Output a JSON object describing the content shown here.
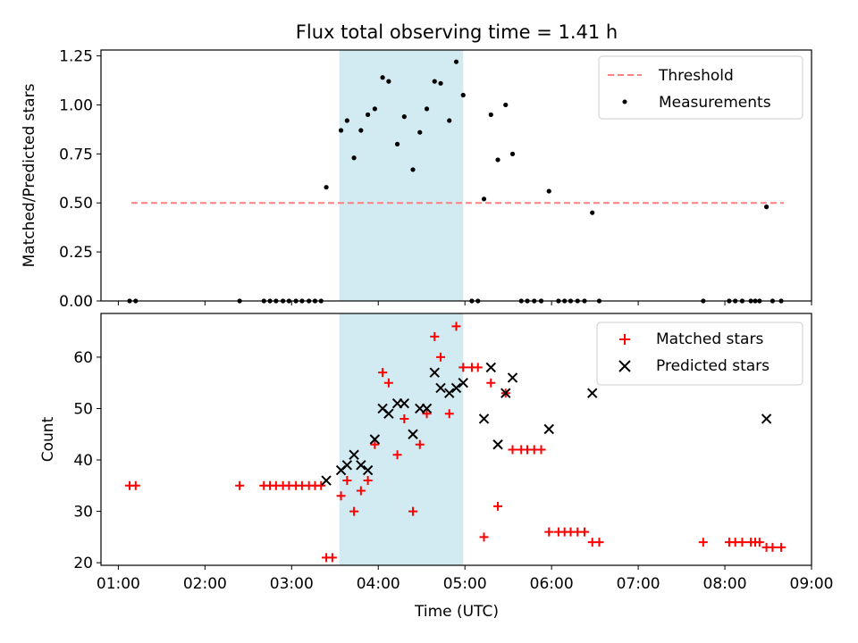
{
  "title": "Flux total observing time = 1.41 h",
  "colors": {
    "shade": "#add8e6",
    "threshold": "#ff8080",
    "measurement": "#000000",
    "matched": "#ff0000",
    "predicted": "#000000"
  },
  "chart_data": [
    {
      "type": "scatter",
      "ylabel": "Matched/Predicted stars",
      "xlabel": "",
      "xlim": [
        0.8,
        9.0
      ],
      "ylim": [
        0,
        1.28
      ],
      "yticks": [
        "0.00",
        "0.25",
        "0.50",
        "0.75",
        "1.00",
        "1.25"
      ],
      "ytick_values": [
        0,
        0.25,
        0.5,
        0.75,
        1.0,
        1.25
      ],
      "shaded_interval": [
        3.55,
        4.98
      ],
      "legend_position": "upper right",
      "series": [
        {
          "name": "Threshold",
          "kind": "dashed-line",
          "x": [
            1.15,
            8.68
          ],
          "y": [
            0.5,
            0.5
          ]
        },
        {
          "name": "Measurements",
          "kind": "dots",
          "x": [
            1.13,
            1.2,
            2.4,
            2.68,
            2.75,
            2.82,
            2.9,
            2.97,
            3.05,
            3.12,
            3.2,
            3.27,
            3.34,
            3.4,
            3.57,
            3.64,
            3.72,
            3.8,
            3.88,
            3.96,
            4.05,
            4.12,
            4.22,
            4.3,
            4.4,
            4.48,
            4.56,
            4.65,
            4.72,
            4.82,
            4.9,
            4.98,
            5.08,
            5.15,
            5.22,
            5.3,
            5.38,
            5.47,
            5.55,
            5.65,
            5.72,
            5.8,
            5.88,
            5.97,
            6.08,
            6.15,
            6.22,
            6.3,
            6.38,
            6.47,
            6.55,
            7.75,
            8.05,
            8.12,
            8.2,
            8.3,
            8.35,
            8.4,
            8.48,
            8.55,
            8.65
          ],
          "y": [
            0,
            0,
            0,
            0,
            0,
            0,
            0,
            0,
            0,
            0,
            0,
            0,
            0,
            0.58,
            0.87,
            0.92,
            0.73,
            0.87,
            0.95,
            0.98,
            1.14,
            1.12,
            0.8,
            0.94,
            0.67,
            0.86,
            0.98,
            1.12,
            1.11,
            0.92,
            1.22,
            1.05,
            0,
            0,
            0.52,
            0.95,
            0.72,
            1.0,
            0.75,
            0,
            0,
            0,
            0,
            0.56,
            0,
            0,
            0,
            0,
            0,
            0.45,
            0,
            0,
            0,
            0,
            0,
            0,
            0,
            0,
            0.48,
            0,
            0
          ]
        }
      ]
    },
    {
      "type": "scatter",
      "ylabel": "Count",
      "xlabel": "Time (UTC)",
      "xlim": [
        0.8,
        9.0
      ],
      "ylim": [
        19.5,
        68.5
      ],
      "yticks": [
        "20",
        "30",
        "40",
        "50",
        "60"
      ],
      "ytick_values": [
        20,
        30,
        40,
        50,
        60
      ],
      "xticks": [
        "01:00",
        "02:00",
        "03:00",
        "04:00",
        "05:00",
        "06:00",
        "07:00",
        "08:00",
        "09:00"
      ],
      "xtick_values": [
        1,
        2,
        3,
        4,
        5,
        6,
        7,
        8,
        9
      ],
      "shaded_interval": [
        3.55,
        4.98
      ],
      "legend_position": "upper right",
      "series": [
        {
          "name": "Matched stars",
          "kind": "plus",
          "x": [
            1.13,
            1.2,
            2.4,
            2.68,
            2.75,
            2.82,
            2.9,
            2.97,
            3.05,
            3.12,
            3.2,
            3.27,
            3.34,
            3.4,
            3.47,
            3.57,
            3.64,
            3.72,
            3.8,
            3.88,
            3.96,
            4.05,
            4.12,
            4.22,
            4.3,
            4.4,
            4.48,
            4.56,
            4.65,
            4.72,
            4.82,
            4.9,
            4.98,
            5.08,
            5.15,
            5.22,
            5.3,
            5.38,
            5.47,
            5.55,
            5.65,
            5.72,
            5.8,
            5.88,
            5.97,
            6.08,
            6.15,
            6.22,
            6.3,
            6.38,
            6.47,
            6.55,
            7.75,
            8.05,
            8.12,
            8.2,
            8.3,
            8.35,
            8.4,
            8.48,
            8.55,
            8.65
          ],
          "y": [
            35,
            35,
            35,
            35,
            35,
            35,
            35,
            35,
            35,
            35,
            35,
            35,
            35,
            21,
            21,
            33,
            36,
            30,
            34,
            36,
            43,
            57,
            55,
            41,
            48,
            30,
            43,
            49,
            64,
            60,
            49,
            66,
            58,
            58,
            58,
            25,
            55,
            31,
            53,
            42,
            42,
            42,
            42,
            42,
            26,
            26,
            26,
            26,
            26,
            26,
            24,
            24,
            24,
            24,
            24,
            24,
            24,
            24,
            24,
            23,
            23,
            23
          ]
        },
        {
          "name": "Predicted stars",
          "kind": "x",
          "x": [
            3.4,
            3.57,
            3.64,
            3.72,
            3.8,
            3.88,
            3.96,
            4.05,
            4.12,
            4.22,
            4.3,
            4.4,
            4.48,
            4.56,
            4.65,
            4.72,
            4.82,
            4.9,
            4.98,
            5.22,
            5.3,
            5.38,
            5.47,
            5.55,
            5.97,
            6.47,
            8.48
          ],
          "y": [
            36,
            38,
            39,
            41,
            39,
            38,
            44,
            50,
            49,
            51,
            51,
            45,
            50,
            50,
            57,
            54,
            53,
            54,
            55,
            48,
            58,
            43,
            53,
            56,
            46,
            53,
            48
          ]
        }
      ]
    }
  ]
}
